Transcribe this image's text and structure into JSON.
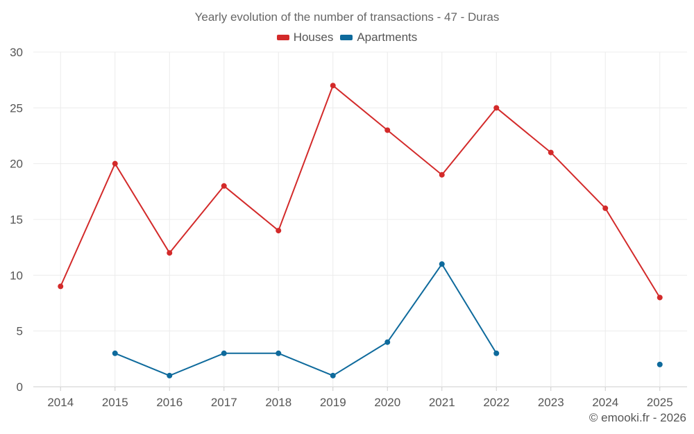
{
  "chart_data": {
    "type": "line",
    "title": "Yearly evolution of the number of transactions - 47 - Duras",
    "categories": [
      "2014",
      "2015",
      "2016",
      "2017",
      "2018",
      "2019",
      "2020",
      "2021",
      "2022",
      "2023",
      "2024",
      "2025"
    ],
    "series": [
      {
        "name": "Houses",
        "color": "#d32a2a",
        "values": [
          9,
          20,
          12,
          18,
          14,
          27,
          23,
          19,
          25,
          21,
          16,
          8
        ]
      },
      {
        "name": "Apartments",
        "color": "#0e6a9c",
        "values": [
          null,
          3,
          1,
          3,
          3,
          1,
          4,
          11,
          3,
          null,
          null,
          2
        ]
      }
    ],
    "ylim": [
      0,
      30
    ],
    "yticks": [
      0,
      5,
      10,
      15,
      20,
      25,
      30
    ],
    "xlabel": "",
    "ylabel": "",
    "grid": true,
    "legend_position": "top-center"
  },
  "credit": "© emooki.fr - 2026"
}
